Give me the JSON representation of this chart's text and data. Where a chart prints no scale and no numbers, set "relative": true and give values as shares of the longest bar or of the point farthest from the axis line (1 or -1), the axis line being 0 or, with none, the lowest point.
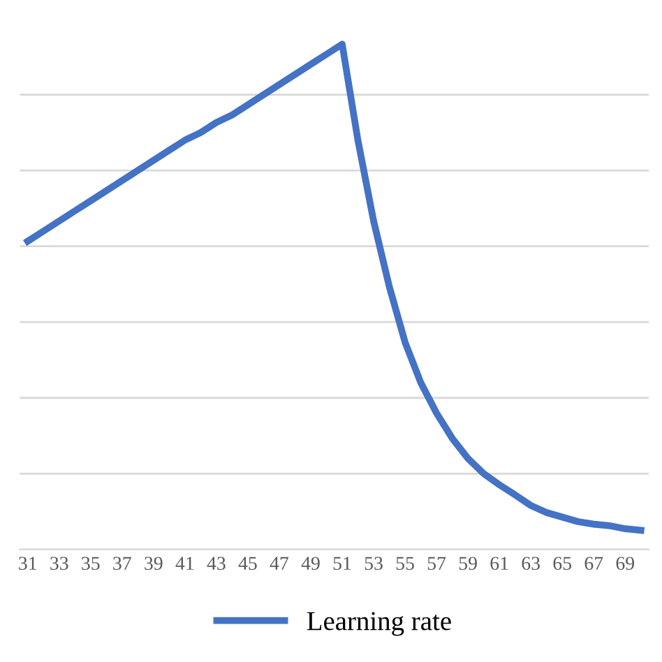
{
  "chart_data": {
    "type": "line",
    "relative": true,
    "grid": "y",
    "legend": "bottom",
    "marker": "none",
    "line_style": "solid",
    "categories": [
      "31",
      null,
      "33",
      null,
      "35",
      null,
      "37",
      null,
      "39",
      null,
      "41",
      null,
      "43",
      null,
      "45",
      null,
      "47",
      null,
      "49",
      null,
      "51",
      null,
      "53",
      null,
      "55",
      null,
      "57",
      null,
      "59",
      null,
      "61",
      null,
      "63",
      null,
      "65",
      null,
      "67",
      null,
      "69",
      null
    ],
    "series": [
      {
        "name": "Learning rate",
        "color": "#4472c4",
        "values": [
          0.61,
          0.63,
          0.65,
          0.67,
          0.69,
          0.71,
          0.73,
          0.75,
          0.77,
          0.79,
          0.81,
          0.825,
          0.845,
          0.86,
          0.88,
          0.9,
          0.92,
          0.94,
          0.96,
          0.98,
          1.0,
          0.81,
          0.65,
          0.52,
          0.41,
          0.33,
          0.27,
          0.22,
          0.18,
          0.15,
          0.128,
          0.108,
          0.087,
          0.073,
          0.064,
          0.055,
          0.05,
          0.047,
          0.041,
          0.038
        ]
      }
    ]
  }
}
